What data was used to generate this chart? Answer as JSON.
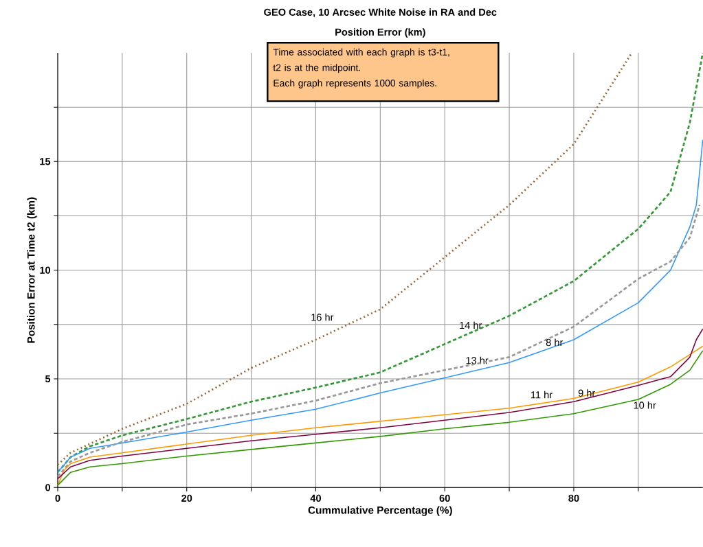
{
  "chart_data": {
    "type": "line",
    "title": "GEO Case, 10 Arcsec White Noise in RA and Dec",
    "subtitle": "Position Error (km)",
    "xlabel": "Cummulative Percentage (%)",
    "ylabel": "Position Error at Time t2 (km)",
    "annotations": [
      "Time associated with each graph is t3-t1,",
      "t2 is at the midpoint.",
      "Each graph represents 1000 samples."
    ],
    "xlim": [
      0,
      100
    ],
    "ylim": [
      0,
      20
    ],
    "xticks": [
      0,
      {
        "value": 10,
        "label": null
      },
      20,
      {
        "value": 30,
        "label": null
      },
      40,
      {
        "value": 50,
        "label": null
      },
      60,
      {
        "value": 70,
        "label": null
      },
      80,
      {
        "value": 90,
        "label": null
      }
    ],
    "yticks": [
      0,
      {
        "value": 2.5,
        "label": null
      },
      5,
      {
        "value": 7.5,
        "label": null
      },
      10,
      {
        "value": 12.5,
        "label": null
      },
      15,
      {
        "value": 17.5,
        "label": null
      }
    ],
    "grid": true,
    "legend": false,
    "marker": "none",
    "series": [
      {
        "name": "16 hr",
        "color": "#996633",
        "line_style": "dotted",
        "x": [
          0,
          2,
          10,
          20,
          30,
          40,
          50,
          60,
          70,
          80,
          89
        ],
        "values": [
          1.05,
          1.6,
          2.7,
          3.85,
          5.5,
          6.8,
          8.2,
          10.6,
          13.0,
          15.8,
          20
        ]
      },
      {
        "name": "14 hr",
        "color": "#339933",
        "line_style": "dashed",
        "x": [
          0,
          2,
          5,
          10,
          20,
          30,
          40,
          50,
          60,
          70,
          80,
          90,
          95,
          98,
          100
        ],
        "values": [
          0.7,
          1.4,
          1.9,
          2.4,
          3.15,
          3.95,
          4.6,
          5.3,
          6.6,
          7.9,
          9.5,
          11.9,
          13.6,
          16.8,
          20
        ]
      },
      {
        "name": "13 hr",
        "color": "#3399ff",
        "line_style": "solid",
        "x": [
          0,
          2,
          5,
          10,
          20,
          30,
          40,
          50,
          60,
          70,
          80,
          90,
          95,
          98,
          99,
          100
        ],
        "values": [
          0.7,
          1.4,
          1.8,
          2.05,
          2.55,
          3.1,
          3.6,
          4.35,
          5.05,
          5.75,
          6.8,
          8.5,
          10.0,
          12.0,
          13.0,
          16.0
        ]
      },
      {
        "name": "8 hr",
        "color": "#999999",
        "line_style": "dashed",
        "x": [
          0,
          2,
          5,
          10,
          20,
          30,
          40,
          50,
          60,
          70,
          80,
          90,
          95,
          98,
          99.5
        ],
        "values": [
          0.5,
          1.2,
          1.6,
          2.1,
          2.9,
          3.4,
          4.0,
          4.8,
          5.4,
          6.0,
          7.4,
          9.6,
          10.4,
          11.5,
          13.0
        ]
      },
      {
        "name": "11 hr",
        "color": "#ff9900",
        "line_style": "solid",
        "x": [
          0,
          1,
          2,
          5,
          10,
          20,
          30,
          40,
          50,
          60,
          70,
          80,
          90,
          95,
          100
        ],
        "values": [
          0.1,
          0.8,
          1.1,
          1.4,
          1.6,
          2.0,
          2.4,
          2.75,
          3.05,
          3.35,
          3.65,
          4.1,
          4.85,
          5.55,
          6.5
        ]
      },
      {
        "name": "9 hr",
        "color": "#800040",
        "line_style": "solid",
        "x": [
          0,
          2,
          5,
          10,
          20,
          30,
          40,
          50,
          60,
          70,
          80,
          90,
          95,
          98,
          99,
          100
        ],
        "values": [
          0.4,
          0.95,
          1.25,
          1.45,
          1.8,
          2.15,
          2.45,
          2.75,
          3.1,
          3.45,
          3.95,
          4.7,
          5.1,
          6.0,
          6.8,
          7.3
        ]
      },
      {
        "name": "10 hr",
        "color": "#339900",
        "line_style": "solid",
        "x": [
          0,
          2,
          5,
          10,
          20,
          30,
          40,
          50,
          60,
          70,
          80,
          90,
          95,
          98,
          100
        ],
        "values": [
          0.1,
          0.7,
          0.95,
          1.1,
          1.45,
          1.75,
          2.05,
          2.35,
          2.7,
          3.0,
          3.4,
          4.05,
          4.75,
          5.4,
          6.3
        ]
      }
    ]
  }
}
